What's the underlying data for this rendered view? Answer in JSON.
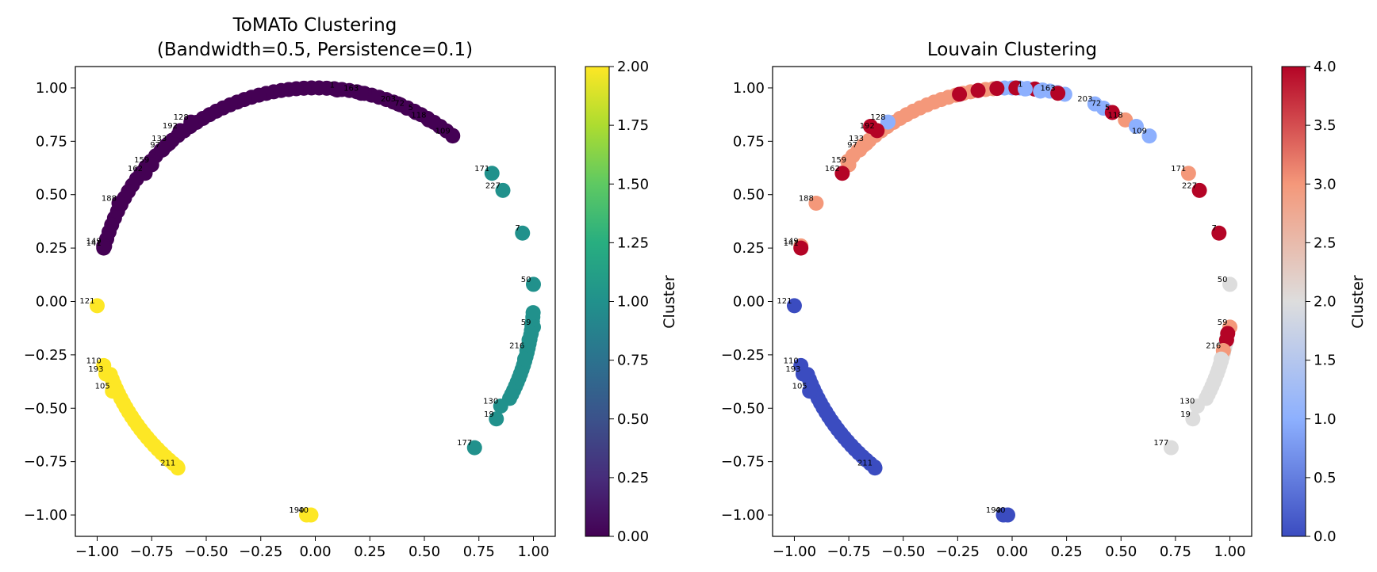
{
  "chart_data": [
    {
      "type": "scatter",
      "title": [
        "ToMATo Clustering",
        "(Bandwidth=0.5, Persistence=0.1)"
      ],
      "xlabel": "",
      "ylabel": "",
      "xlim": [
        -1.1,
        1.1
      ],
      "ylim": [
        -1.1,
        1.1
      ],
      "x_ticks": [
        -1.0,
        -0.75,
        -0.5,
        -0.25,
        0.0,
        0.25,
        0.5,
        0.75,
        1.0
      ],
      "x_tick_labels": [
        "−1.00",
        "−0.75",
        "−0.50",
        "−0.25",
        "0.00",
        "0.25",
        "0.50",
        "0.75",
        "1.00"
      ],
      "y_ticks": [
        1.0,
        0.75,
        0.5,
        0.25,
        0.0,
        -0.25,
        -0.5,
        -0.75,
        -1.0
      ],
      "y_tick_labels": [
        "1.00",
        "0.75",
        "0.50",
        "0.25",
        "0.00",
        "−0.25",
        "−0.50",
        "−0.75",
        "−1.00"
      ],
      "colormap": "viridis",
      "colorbar": {
        "label": "Cluster",
        "range": [
          0,
          2
        ],
        "ticks": [
          0,
          0.25,
          0.5,
          0.75,
          1.0,
          1.25,
          1.5,
          1.75,
          2.0
        ],
        "tick_labels": [
          "0.00",
          "0.25",
          "0.50",
          "0.75",
          "1.00",
          "1.25",
          "1.50",
          "1.75",
          "2.00"
        ]
      },
      "cluster_arcs": [
        {
          "cluster": 0,
          "from_deg": 51,
          "to_deg": 166,
          "step_deg": 2
        },
        {
          "cluster": 1,
          "from_deg": 333,
          "to_deg": 357,
          "step_deg": 1.2
        },
        {
          "cluster": 2,
          "from_deg": 200,
          "to_deg": 232,
          "step_deg": 1.4
        }
      ],
      "points": [
        {
          "x": 0.21,
          "y": 0.975,
          "c": 0,
          "label": "163"
        },
        {
          "x": 0.1,
          "y": 0.99,
          "c": 0,
          "label": "1"
        },
        {
          "x": 0.38,
          "y": 0.925,
          "c": 0,
          "label": "203"
        },
        {
          "x": 0.42,
          "y": 0.905,
          "c": 0,
          "label": "72"
        },
        {
          "x": 0.46,
          "y": 0.885,
          "c": 0,
          "label": "5"
        },
        {
          "x": 0.52,
          "y": 0.85,
          "c": 0,
          "label": "118"
        },
        {
          "x": 0.57,
          "y": 0.82,
          "c": 0,
          "label": ""
        },
        {
          "x": 0.63,
          "y": 0.775,
          "c": 0,
          "label": "109"
        },
        {
          "x": -0.57,
          "y": 0.84,
          "c": 0,
          "label": "128"
        },
        {
          "x": -0.62,
          "y": 0.8,
          "c": 0,
          "label": "192"
        },
        {
          "x": -0.67,
          "y": 0.74,
          "c": 0,
          "label": "133"
        },
        {
          "x": -0.7,
          "y": 0.71,
          "c": 0,
          "label": "97"
        },
        {
          "x": -0.75,
          "y": 0.64,
          "c": 0,
          "label": "159"
        },
        {
          "x": -0.78,
          "y": 0.6,
          "c": 0,
          "label": "162"
        },
        {
          "x": -0.9,
          "y": 0.46,
          "c": 0,
          "label": "188"
        },
        {
          "x": -0.97,
          "y": 0.26,
          "c": 0,
          "label": "149"
        },
        {
          "x": -0.97,
          "y": 0.25,
          "c": 0,
          "label": "141"
        },
        {
          "x": 0.81,
          "y": 0.6,
          "c": 1,
          "label": "171"
        },
        {
          "x": 0.86,
          "y": 0.52,
          "c": 1,
          "label": "227"
        },
        {
          "x": 0.95,
          "y": 0.32,
          "c": 1,
          "label": "7"
        },
        {
          "x": 1.0,
          "y": 0.08,
          "c": 1,
          "label": "50"
        },
        {
          "x": 1.0,
          "y": -0.12,
          "c": 1,
          "label": "59"
        },
        {
          "x": 0.99,
          "y": -0.15,
          "c": 1,
          "label": ""
        },
        {
          "x": 0.98,
          "y": -0.18,
          "c": 1,
          "label": ""
        },
        {
          "x": 0.97,
          "y": -0.23,
          "c": 1,
          "label": "216"
        },
        {
          "x": 0.96,
          "y": -0.27,
          "c": 1,
          "label": ""
        },
        {
          "x": 0.85,
          "y": -0.49,
          "c": 1,
          "label": "130"
        },
        {
          "x": 0.83,
          "y": -0.55,
          "c": 1,
          "label": "19"
        },
        {
          "x": 0.73,
          "y": -0.685,
          "c": 1,
          "label": "177"
        },
        {
          "x": -1.0,
          "y": -0.02,
          "c": 2,
          "label": "121"
        },
        {
          "x": -0.97,
          "y": -0.3,
          "c": 2,
          "label": "110"
        },
        {
          "x": -0.96,
          "y": -0.34,
          "c": 2,
          "label": "193"
        },
        {
          "x": -0.93,
          "y": -0.42,
          "c": 2,
          "label": "105"
        },
        {
          "x": -0.63,
          "y": -0.78,
          "c": 2,
          "label": "211"
        },
        {
          "x": -0.04,
          "y": -1.0,
          "c": 2,
          "label": "190"
        },
        {
          "x": -0.02,
          "y": -1.0,
          "c": 2,
          "label": "40"
        }
      ]
    },
    {
      "type": "scatter",
      "title": [
        "Louvain Clustering"
      ],
      "xlabel": "",
      "ylabel": "",
      "xlim": [
        -1.1,
        1.1
      ],
      "ylim": [
        -1.1,
        1.1
      ],
      "x_ticks": [
        -1.0,
        -0.75,
        -0.5,
        -0.25,
        0.0,
        0.25,
        0.5,
        0.75,
        1.0
      ],
      "x_tick_labels": [
        "−1.00",
        "−0.75",
        "−0.50",
        "−0.25",
        "0.00",
        "0.25",
        "0.50",
        "0.75",
        "1.00"
      ],
      "y_ticks": [
        1.0,
        0.75,
        0.5,
        0.25,
        0.0,
        -0.25,
        -0.5,
        -0.75,
        -1.0
      ],
      "y_tick_labels": [
        "1.00",
        "0.75",
        "0.50",
        "0.25",
        "0.00",
        "−0.25",
        "−0.50",
        "−0.75",
        "−1.00"
      ],
      "colormap": "coolwarm",
      "colorbar": {
        "label": "Cluster",
        "range": [
          0,
          4
        ],
        "ticks": [
          0,
          0.5,
          1.0,
          1.5,
          2.0,
          2.5,
          3.0,
          3.5,
          4.0
        ],
        "tick_labels": [
          "0.0",
          "0.5",
          "1.0",
          "1.5",
          "2.0",
          "2.5",
          "3.0",
          "3.5",
          "4.0"
        ]
      },
      "cluster_arcs": [
        {
          "cluster": 3,
          "from_deg": 95,
          "to_deg": 140,
          "step_deg": 2
        },
        {
          "cluster": 1,
          "from_deg": 76,
          "to_deg": 94,
          "step_deg": 2
        },
        {
          "cluster": 4,
          "from_deg": 84,
          "to_deg": 104,
          "step_deg": 5
        },
        {
          "cluster": 2,
          "from_deg": 333,
          "to_deg": 352,
          "step_deg": 1.2
        },
        {
          "cluster": 0,
          "from_deg": 200,
          "to_deg": 232,
          "step_deg": 1.4
        }
      ],
      "points": [
        {
          "x": 0.21,
          "y": 0.975,
          "c": 4,
          "label": "163"
        },
        {
          "x": 0.13,
          "y": 0.985,
          "c": 1,
          "label": ""
        },
        {
          "x": 0.06,
          "y": 0.995,
          "c": 1,
          "label": "1"
        },
        {
          "x": 0.38,
          "y": 0.925,
          "c": 1,
          "label": "203"
        },
        {
          "x": 0.42,
          "y": 0.905,
          "c": 1,
          "label": "72"
        },
        {
          "x": 0.46,
          "y": 0.885,
          "c": 4,
          "label": "5"
        },
        {
          "x": 0.52,
          "y": 0.85,
          "c": 3,
          "label": "118"
        },
        {
          "x": 0.57,
          "y": 0.82,
          "c": 1,
          "label": ""
        },
        {
          "x": 0.63,
          "y": 0.775,
          "c": 1,
          "label": "109"
        },
        {
          "x": -0.57,
          "y": 0.84,
          "c": 1,
          "label": "128"
        },
        {
          "x": -0.62,
          "y": 0.8,
          "c": 4,
          "label": "192"
        },
        {
          "x": -0.65,
          "y": 0.82,
          "c": 4,
          "label": ""
        },
        {
          "x": -0.67,
          "y": 0.74,
          "c": 3,
          "label": "133"
        },
        {
          "x": -0.7,
          "y": 0.71,
          "c": 3,
          "label": "97"
        },
        {
          "x": -0.75,
          "y": 0.64,
          "c": 3,
          "label": "159"
        },
        {
          "x": -0.78,
          "y": 0.6,
          "c": 4,
          "label": "162"
        },
        {
          "x": -0.9,
          "y": 0.46,
          "c": 3,
          "label": "188"
        },
        {
          "x": -0.97,
          "y": 0.26,
          "c": 3,
          "label": "149"
        },
        {
          "x": -0.97,
          "y": 0.25,
          "c": 4,
          "label": "141"
        },
        {
          "x": 0.81,
          "y": 0.6,
          "c": 3,
          "label": "171"
        },
        {
          "x": 0.86,
          "y": 0.52,
          "c": 4,
          "label": "227"
        },
        {
          "x": 0.95,
          "y": 0.32,
          "c": 4,
          "label": "7"
        },
        {
          "x": 1.0,
          "y": 0.08,
          "c": 2,
          "label": "50"
        },
        {
          "x": 1.0,
          "y": -0.12,
          "c": 3,
          "label": "59"
        },
        {
          "x": 0.99,
          "y": -0.15,
          "c": 4,
          "label": ""
        },
        {
          "x": 0.985,
          "y": -0.18,
          "c": 4,
          "label": ""
        },
        {
          "x": 0.97,
          "y": -0.23,
          "c": 3,
          "label": "216"
        },
        {
          "x": 0.96,
          "y": -0.27,
          "c": 2,
          "label": ""
        },
        {
          "x": 0.85,
          "y": -0.49,
          "c": 2,
          "label": "130"
        },
        {
          "x": 0.83,
          "y": -0.55,
          "c": 2,
          "label": "19"
        },
        {
          "x": 0.73,
          "y": -0.685,
          "c": 2,
          "label": "177"
        },
        {
          "x": -1.0,
          "y": -0.02,
          "c": 0,
          "label": "121"
        },
        {
          "x": -0.97,
          "y": -0.3,
          "c": 0,
          "label": "110"
        },
        {
          "x": -0.96,
          "y": -0.34,
          "c": 0,
          "label": "193"
        },
        {
          "x": -0.93,
          "y": -0.42,
          "c": 0,
          "label": "105"
        },
        {
          "x": -0.63,
          "y": -0.78,
          "c": 0,
          "label": "211"
        },
        {
          "x": -0.04,
          "y": -1.0,
          "c": 0,
          "label": "190"
        },
        {
          "x": -0.02,
          "y": -1.0,
          "c": 0,
          "label": "40"
        }
      ]
    }
  ]
}
